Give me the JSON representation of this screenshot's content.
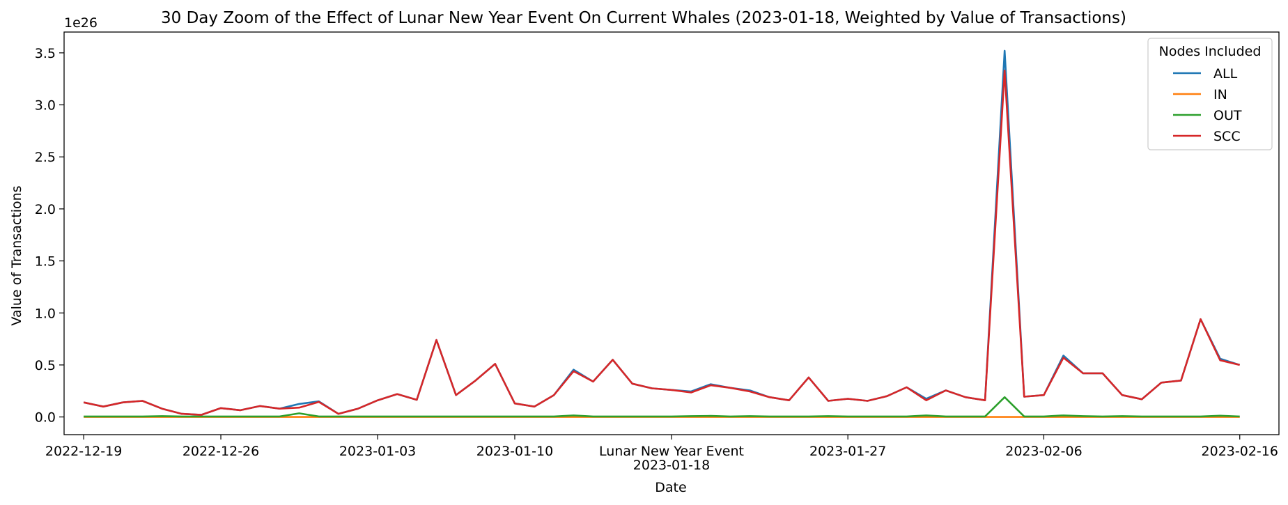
{
  "chart_data": {
    "type": "line",
    "title": "30 Day Zoom of the Effect of Lunar New Year Event On Current Whales (2023-01-18, Weighted by Value of Transactions)",
    "xlabel": "Date",
    "ylabel": "Value of Transactions",
    "y_multiplier_label": "1e26",
    "ylim": [
      -0.17,
      3.7
    ],
    "xlim": [
      "2022-12-18",
      "2023-02-18"
    ],
    "y_ticks": [
      0.0,
      0.5,
      1.0,
      1.5,
      2.0,
      2.5,
      3.0,
      3.5
    ],
    "y_tick_labels": [
      "0.0",
      "0.5",
      "1.0",
      "1.5",
      "2.0",
      "2.5",
      "3.0",
      "3.5"
    ],
    "x_ticks": [
      "2022-12-19",
      "2022-12-26",
      "2023-01-03",
      "2023-01-10",
      "2023-01-18",
      "2023-01-27",
      "2023-02-06",
      "2023-02-16"
    ],
    "x_tick_labels": [
      "2022-12-19",
      "2022-12-26",
      "2023-01-03",
      "2023-01-10",
      "2023-01-18",
      "2023-01-27",
      "2023-02-06",
      "2023-02-16"
    ],
    "event_label": "Lunar New Year Event",
    "legend": {
      "title": "Nodes Included",
      "position": "top-right"
    },
    "grid": false,
    "x": [
      "2022-12-19",
      "2022-12-20",
      "2022-12-21",
      "2022-12-22",
      "2022-12-23",
      "2022-12-24",
      "2022-12-25",
      "2022-12-26",
      "2022-12-27",
      "2022-12-28",
      "2022-12-29",
      "2022-12-30",
      "2022-12-31",
      "2023-01-01",
      "2023-01-02",
      "2023-01-03",
      "2023-01-04",
      "2023-01-05",
      "2023-01-06",
      "2023-01-07",
      "2023-01-08",
      "2023-01-09",
      "2023-01-10",
      "2023-01-11",
      "2023-01-12",
      "2023-01-13",
      "2023-01-14",
      "2023-01-15",
      "2023-01-16",
      "2023-01-17",
      "2023-01-18",
      "2023-01-19",
      "2023-01-20",
      "2023-01-21",
      "2023-01-22",
      "2023-01-23",
      "2023-01-24",
      "2023-01-25",
      "2023-01-26",
      "2023-01-27",
      "2023-01-28",
      "2023-01-29",
      "2023-01-30",
      "2023-01-31",
      "2023-02-01",
      "2023-02-02",
      "2023-02-03",
      "2023-02-04",
      "2023-02-05",
      "2023-02-06",
      "2023-02-07",
      "2023-02-08",
      "2023-02-09",
      "2023-02-10",
      "2023-02-11",
      "2023-02-12",
      "2023-02-13",
      "2023-02-14",
      "2023-02-15",
      "2023-02-16"
    ],
    "series": [
      {
        "name": "ALL",
        "color": "#1f77b4",
        "values": [
          0.14,
          0.1,
          0.14,
          0.155,
          0.08,
          0.03,
          0.02,
          0.085,
          0.065,
          0.105,
          0.08,
          0.125,
          0.15,
          0.03,
          0.08,
          0.16,
          0.22,
          0.165,
          0.74,
          0.21,
          0.35,
          0.51,
          0.13,
          0.1,
          0.21,
          0.455,
          0.34,
          0.55,
          0.32,
          0.275,
          0.26,
          0.245,
          0.315,
          0.28,
          0.255,
          0.19,
          0.16,
          0.38,
          0.155,
          0.175,
          0.155,
          0.2,
          0.285,
          0.175,
          0.255,
          0.19,
          0.16,
          3.52,
          0.195,
          0.21,
          0.59,
          0.42,
          0.42,
          0.21,
          0.17,
          0.33,
          0.35,
          0.94,
          0.56,
          0.5
        ]
      },
      {
        "name": "IN",
        "color": "#ff7f0e",
        "values": [
          0.0,
          0.0,
          0.0,
          0.0,
          0.0,
          0.0,
          0.0,
          0.0,
          0.0,
          0.0,
          0.0,
          0.0,
          0.0,
          0.0,
          0.0,
          0.0,
          0.0,
          0.0,
          0.0,
          0.0,
          0.0,
          0.0,
          0.0,
          0.0,
          0.0,
          0.0,
          0.0,
          0.0,
          0.0,
          0.0,
          0.0,
          0.0,
          0.0,
          0.0,
          0.0,
          0.0,
          0.0,
          0.0,
          0.0,
          0.0,
          0.0,
          0.0,
          0.0,
          0.0,
          0.0,
          0.0,
          0.0,
          0.0,
          0.0,
          0.0,
          0.0,
          0.0,
          0.0,
          0.0,
          0.0,
          0.0,
          0.0,
          0.0,
          0.0,
          0.0
        ]
      },
      {
        "name": "OUT",
        "color": "#2ca02c",
        "values": [
          0.005,
          0.005,
          0.005,
          0.005,
          0.008,
          0.005,
          0.005,
          0.005,
          0.005,
          0.005,
          0.005,
          0.035,
          0.005,
          0.005,
          0.005,
          0.005,
          0.005,
          0.005,
          0.005,
          0.005,
          0.005,
          0.005,
          0.005,
          0.005,
          0.005,
          0.015,
          0.005,
          0.005,
          0.005,
          0.005,
          0.005,
          0.008,
          0.01,
          0.005,
          0.008,
          0.005,
          0.005,
          0.005,
          0.008,
          0.005,
          0.005,
          0.005,
          0.005,
          0.015,
          0.005,
          0.005,
          0.005,
          0.19,
          0.005,
          0.005,
          0.015,
          0.008,
          0.005,
          0.008,
          0.005,
          0.005,
          0.005,
          0.005,
          0.012,
          0.005
        ]
      },
      {
        "name": "SCC",
        "color": "#d62728",
        "values": [
          0.14,
          0.1,
          0.14,
          0.155,
          0.08,
          0.03,
          0.02,
          0.085,
          0.065,
          0.105,
          0.08,
          0.09,
          0.145,
          0.03,
          0.08,
          0.16,
          0.22,
          0.165,
          0.74,
          0.21,
          0.35,
          0.51,
          0.13,
          0.1,
          0.21,
          0.44,
          0.34,
          0.55,
          0.32,
          0.275,
          0.26,
          0.235,
          0.305,
          0.28,
          0.245,
          0.19,
          0.16,
          0.38,
          0.155,
          0.175,
          0.155,
          0.2,
          0.285,
          0.16,
          0.255,
          0.19,
          0.16,
          3.33,
          0.195,
          0.21,
          0.57,
          0.42,
          0.42,
          0.21,
          0.17,
          0.33,
          0.35,
          0.94,
          0.545,
          0.5
        ]
      }
    ]
  }
}
